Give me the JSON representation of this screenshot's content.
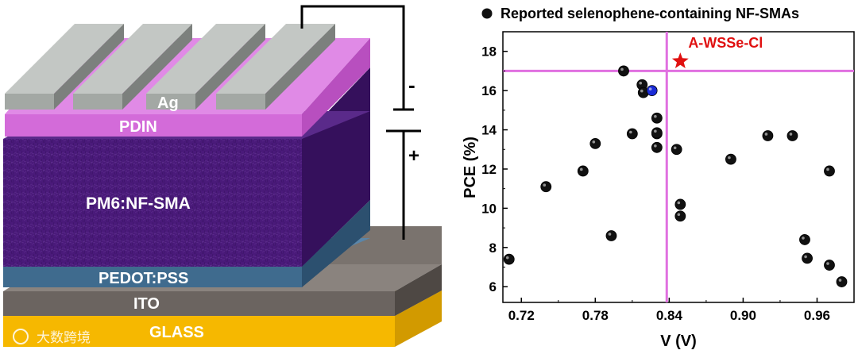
{
  "device": {
    "layers": {
      "electrode": "Ag",
      "etl": "PDIN",
      "active": "PM6:NF-SMA",
      "htl": "PEDOT:PSS",
      "anode": "ITO",
      "substrate": "GLASS"
    },
    "battery": {
      "minus": "-",
      "plus": "+"
    },
    "colors": {
      "ag": "#a3a8a4",
      "pdin": "#d36bd9",
      "active": "#4a1a7a",
      "pedot": "#3f6b8e",
      "ito": "#6b6460",
      "glass": "#f6b800"
    }
  },
  "watermark": "大数跨境",
  "chart_data": {
    "type": "scatter",
    "title": "",
    "xlabel": "V (V)",
    "ylabel": "PCE (%)",
    "xlim": [
      0.705,
      0.99
    ],
    "ylim": [
      5.2,
      19.0
    ],
    "xticks": [
      0.72,
      0.78,
      0.84,
      0.9,
      0.96
    ],
    "xtick_labels": [
      "0.72",
      "0.78",
      "0.84",
      "0.90",
      "0.96"
    ],
    "yticks": [
      6,
      8,
      10,
      12,
      14,
      16,
      18
    ],
    "ytick_labels": [
      "6",
      "8",
      "10",
      "12",
      "14",
      "16",
      "18"
    ],
    "grid": false,
    "legend": {
      "position": "top",
      "entries": [
        "Reported selenophene-containing NF-SMAs"
      ]
    },
    "series": [
      {
        "name": "Reported selenophene-containing NF-SMAs",
        "color": "#111111",
        "x": [
          0.71,
          0.74,
          0.77,
          0.78,
          0.793,
          0.803,
          0.81,
          0.818,
          0.819,
          0.83,
          0.83,
          0.83,
          0.83,
          0.846,
          0.849,
          0.849,
          0.89,
          0.92,
          0.94,
          0.95,
          0.952,
          0.97,
          0.97,
          0.98
        ],
        "y": [
          7.4,
          11.1,
          11.9,
          13.3,
          8.6,
          17.0,
          13.8,
          16.3,
          15.9,
          14.6,
          13.8,
          13.1,
          13.85,
          13.0,
          10.2,
          9.6,
          12.5,
          13.7,
          13.7,
          8.4,
          7.45,
          11.9,
          7.1,
          6.25
        ]
      },
      {
        "name": "",
        "color": "#1a2bd6",
        "x": [
          0.826
        ],
        "y": [
          16.0
        ]
      }
    ],
    "highlight": {
      "label": "A-WSSe-Cl",
      "x": 0.849,
      "y": 17.5,
      "color": "#e01010",
      "marker": "star"
    },
    "reference_lines": {
      "x": 0.838,
      "y": 17.0,
      "color": "#e070e0"
    }
  }
}
